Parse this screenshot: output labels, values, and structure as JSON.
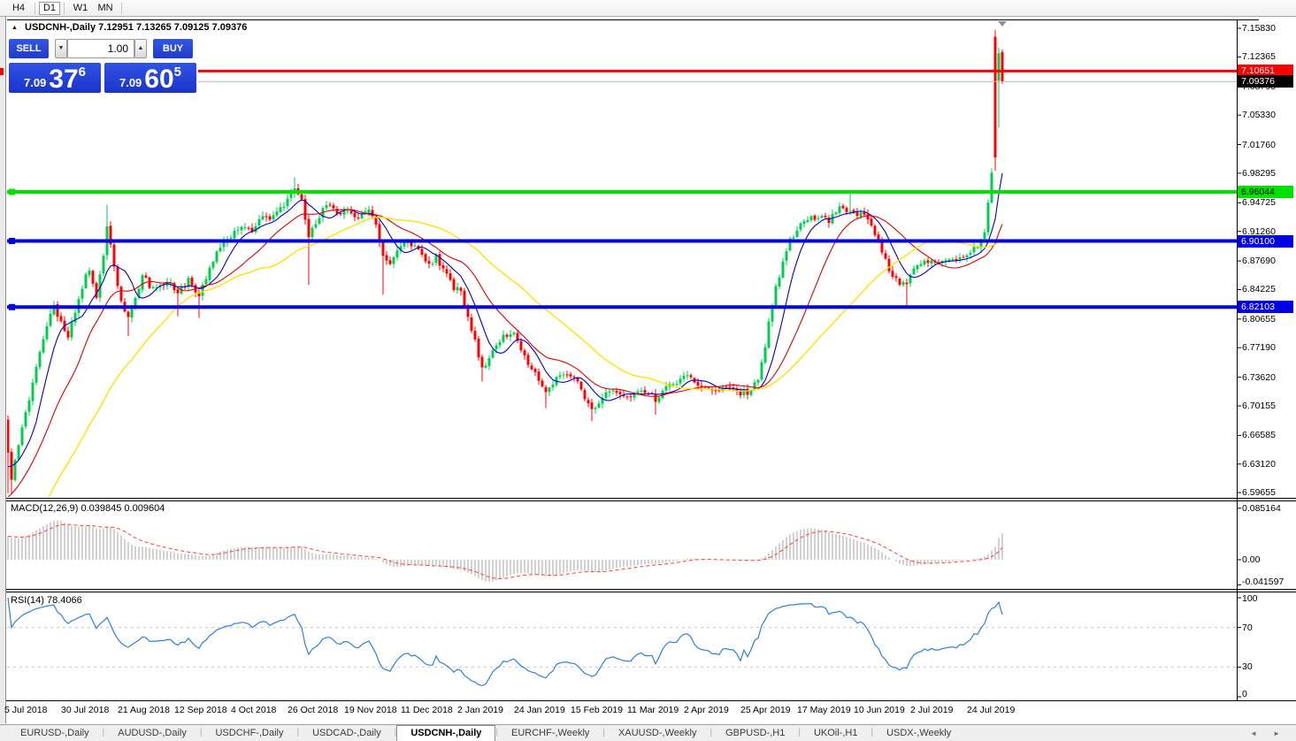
{
  "toolbar": {
    "timeframes": [
      "H4",
      "D1",
      "W1",
      "MN"
    ],
    "active": "D1"
  },
  "chart_header": {
    "collapse_icon": "▲",
    "symbol": "USDCNH-,Daily",
    "ohlc": "7.12951 7.13265 7.09125 7.09376"
  },
  "trade_panel": {
    "sell_label": "SELL",
    "buy_label": "BUY",
    "volume": "1.00",
    "spinner_down": "▼",
    "spinner_up": "▲",
    "sell_price_small": "7.09",
    "sell_price_big": "37",
    "sell_price_sup": "6",
    "buy_price_small": "7.09",
    "buy_price_big": "60",
    "buy_price_sup": "5"
  },
  "tabs": {
    "items": [
      {
        "label": "EURUSD-,Daily",
        "active": false
      },
      {
        "label": "AUDUSD-,Daily",
        "active": false
      },
      {
        "label": "USDCHF-,Daily",
        "active": false
      },
      {
        "label": "USDCAD-,Daily",
        "active": false
      },
      {
        "label": "USDCNH-,Daily",
        "active": true
      },
      {
        "label": "EURCHF-,Weekly",
        "active": false
      },
      {
        "label": "XAUUSD-,Weekly",
        "active": false
      },
      {
        "label": "GBPUSD-,H1",
        "active": false
      },
      {
        "label": "UKOil-,H1",
        "active": false
      },
      {
        "label": "USDX-,Weekly",
        "active": false
      }
    ],
    "scroll_left": "◄",
    "scroll_right": "►"
  },
  "chart_data": {
    "type": "candlestick",
    "symbol": "USDCNH-",
    "timeframe": "Daily",
    "last_ohlc": {
      "open": "7.12951",
      "high": "7.13265",
      "low": "7.09125",
      "close": "7.09376"
    },
    "price_axis": {
      "ylim": [
        6.5935,
        7.1583
      ],
      "ticks": [
        "7.15830",
        "7.12365",
        "7.08795",
        "7.05330",
        "7.01760",
        "6.98295",
        "6.94725",
        "6.91260",
        "6.87690",
        "6.84225",
        "6.80655",
        "6.77190",
        "6.73620",
        "6.70155",
        "6.66585",
        "6.63120",
        "6.59655"
      ],
      "current": "7.09376"
    },
    "hlines": [
      {
        "price": 7.10651,
        "label": "7.10651",
        "color": "#FF0000",
        "text_color": "#FFFFFF",
        "width": 3
      },
      {
        "price": 6.96044,
        "label": "6.96044",
        "color": "#00E100",
        "text_color": "#000000",
        "width": 4
      },
      {
        "price": 6.901,
        "label": "6.90100",
        "color": "#0000E0",
        "text_color": "#FFFFFF",
        "width": 4
      },
      {
        "price": 6.82103,
        "label": "6.82103",
        "color": "#0000E0",
        "text_color": "#FFFFFF",
        "width": 4
      }
    ],
    "x_axis": {
      "dates": [
        "5 Jul 2018",
        "30 Jul 2018",
        "21 Aug 2018",
        "12 Sep 2018",
        "4 Oct 2018",
        "26 Oct 2018",
        "19 Nov 2018",
        "11 Dec 2018",
        "2 Jan 2019",
        "24 Jan 2019",
        "15 Feb 2019",
        "11 Mar 2019",
        "2 Apr 2019",
        "25 Apr 2019",
        "17 May 2019",
        "10 Jun 2019",
        "2 Jul 2019",
        "24 Jul 2019"
      ]
    },
    "candles": {
      "count": 282,
      "anchors": [
        [
          0,
          6.645
        ],
        [
          1,
          6.614
        ],
        [
          3,
          6.652
        ],
        [
          5,
          6.692
        ],
        [
          7,
          6.73
        ],
        [
          9,
          6.766
        ],
        [
          11,
          6.8
        ],
        [
          13,
          6.824
        ],
        [
          15,
          6.802
        ],
        [
          17,
          6.788
        ],
        [
          19,
          6.815
        ],
        [
          21,
          6.845
        ],
        [
          23,
          6.868
        ],
        [
          25,
          6.836
        ],
        [
          27,
          6.885
        ],
        [
          28,
          6.92
        ],
        [
          30,
          6.87
        ],
        [
          32,
          6.828
        ],
        [
          34,
          6.808
        ],
        [
          36,
          6.835
        ],
        [
          38,
          6.858
        ],
        [
          40,
          6.848
        ],
        [
          43,
          6.845
        ],
        [
          45,
          6.852
        ],
        [
          48,
          6.836
        ],
        [
          51,
          6.855
        ],
        [
          54,
          6.835
        ],
        [
          57,
          6.865
        ],
        [
          60,
          6.895
        ],
        [
          63,
          6.908
        ],
        [
          66,
          6.92
        ],
        [
          69,
          6.912
        ],
        [
          72,
          6.93
        ],
        [
          75,
          6.93
        ],
        [
          78,
          6.945
        ],
        [
          81,
          6.968
        ],
        [
          83,
          6.955
        ],
        [
          85,
          6.905
        ],
        [
          87,
          6.922
        ],
        [
          90,
          6.945
        ],
        [
          93,
          6.935
        ],
        [
          96,
          6.938
        ],
        [
          99,
          6.93
        ],
        [
          102,
          6.94
        ],
        [
          104,
          6.92
        ],
        [
          106,
          6.883
        ],
        [
          108,
          6.872
        ],
        [
          110,
          6.888
        ],
        [
          113,
          6.902
        ],
        [
          116,
          6.89
        ],
        [
          119,
          6.872
        ],
        [
          121,
          6.882
        ],
        [
          124,
          6.858
        ],
        [
          126,
          6.845
        ],
        [
          128,
          6.838
        ],
        [
          130,
          6.81
        ],
        [
          132,
          6.778
        ],
        [
          134,
          6.748
        ],
        [
          136,
          6.758
        ],
        [
          139,
          6.782
        ],
        [
          142,
          6.792
        ],
        [
          144,
          6.78
        ],
        [
          147,
          6.755
        ],
        [
          149,
          6.742
        ],
        [
          152,
          6.72
        ],
        [
          155,
          6.735
        ],
        [
          158,
          6.742
        ],
        [
          160,
          6.735
        ],
        [
          163,
          6.712
        ],
        [
          165,
          6.695
        ],
        [
          168,
          6.715
        ],
        [
          171,
          6.72
        ],
        [
          174,
          6.71
        ],
        [
          177,
          6.715
        ],
        [
          180,
          6.72
        ],
        [
          183,
          6.71
        ],
        [
          186,
          6.722
        ],
        [
          189,
          6.732
        ],
        [
          192,
          6.735
        ],
        [
          195,
          6.728
        ],
        [
          198,
          6.722
        ],
        [
          201,
          6.72
        ],
        [
          204,
          6.725
        ],
        [
          207,
          6.716
        ],
        [
          210,
          6.72
        ],
        [
          212,
          6.735
        ],
        [
          213,
          6.752
        ],
        [
          215,
          6.8
        ],
        [
          217,
          6.843
        ],
        [
          219,
          6.878
        ],
        [
          221,
          6.9
        ],
        [
          224,
          6.922
        ],
        [
          228,
          6.93
        ],
        [
          232,
          6.925
        ],
        [
          235,
          6.94
        ],
        [
          238,
          6.935
        ],
        [
          241,
          6.935
        ],
        [
          244,
          6.92
        ],
        [
          247,
          6.89
        ],
        [
          249,
          6.862
        ],
        [
          251,
          6.855
        ],
        [
          254,
          6.845
        ],
        [
          256,
          6.868
        ],
        [
          260,
          6.876
        ],
        [
          264,
          6.88
        ],
        [
          268,
          6.875
        ],
        [
          271,
          6.885
        ],
        [
          274,
          6.895
        ],
        [
          276,
          6.915
        ],
        [
          277,
          6.95
        ],
        [
          278,
          6.985
        ]
      ],
      "wick_overrides": {
        "1": {
          "l": 6.594
        },
        "28": {
          "h": 6.945
        },
        "34": {
          "l": 6.786
        },
        "48": {
          "l": 6.81
        },
        "54": {
          "l": 6.808
        },
        "81": {
          "h": 6.978
        },
        "85": {
          "l": 6.848
        },
        "106": {
          "l": 6.836
        },
        "134": {
          "l": 6.731
        },
        "152": {
          "l": 6.699
        },
        "165": {
          "l": 6.683
        },
        "183": {
          "l": 6.691
        },
        "238": {
          "h": 6.962
        },
        "254": {
          "l": 6.822
        }
      },
      "specials": {
        "0": [
          6.685,
          6.69,
          6.596,
          6.645
        ],
        "279": [
          7.148,
          7.156,
          6.986,
          7.002
        ],
        "280": [
          7.095,
          7.135,
          7.038,
          7.128
        ],
        "281": [
          7.1295,
          7.13265,
          7.09125,
          7.09376
        ]
      },
      "seed": 11
    },
    "moving_averages": [
      {
        "window": 8,
        "color": "#0000C8",
        "width": 1.1
      },
      {
        "window": 20,
        "color": "#E00000",
        "width": 1.1
      },
      {
        "window": 45,
        "color": "#FFE400",
        "width": 1.4
      }
    ],
    "indicators": {
      "macd": {
        "label": "MACD(12,26,9)",
        "values_text": "0.039845 0.009604",
        "fast": 12,
        "slow": 26,
        "signal": 9,
        "axis": [
          {
            "label": "0.085164",
            "v": 0.085164
          },
          {
            "label": "0.00",
            "v": 0
          },
          {
            "label": "-0.041597",
            "v": -0.041597
          }
        ]
      },
      "rsi": {
        "label": "RSI(14)",
        "value_text": "78.4066",
        "period": 14,
        "levels": [
          70,
          30
        ],
        "axis": [
          {
            "label": "100",
            "v": 100
          },
          {
            "label": "70",
            "v": 70
          },
          {
            "label": "30",
            "v": 30
          },
          {
            "label": "0",
            "v": 0
          }
        ]
      }
    },
    "colors": {
      "bull": "#00CE4E",
      "bear": "#FF0000",
      "macd_hist": "#BDBDBD",
      "macd_signal": "#FF3B3B",
      "rsi_line": "#2F80D6",
      "rsi_levels": "#C8C8C8",
      "current_line": "#B8B8B8",
      "current_tag_bg": "#000000",
      "current_tag_text": "#FFFFFF",
      "marker": "#909090",
      "border": "#000000"
    }
  }
}
